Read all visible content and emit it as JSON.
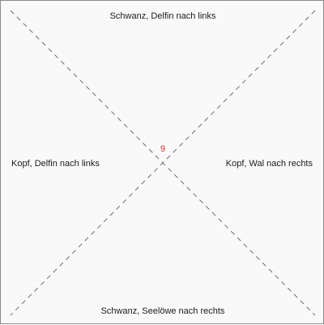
{
  "tile": {
    "number": "9",
    "number_color": "#d03030",
    "edges": {
      "top": "Schwanz, Delfin nach links",
      "right": "Kopf, Wal nach rechts",
      "bottom": "Schwanz, Seelöwe nach rechts",
      "left": "Kopf, Delfin nach links"
    }
  }
}
